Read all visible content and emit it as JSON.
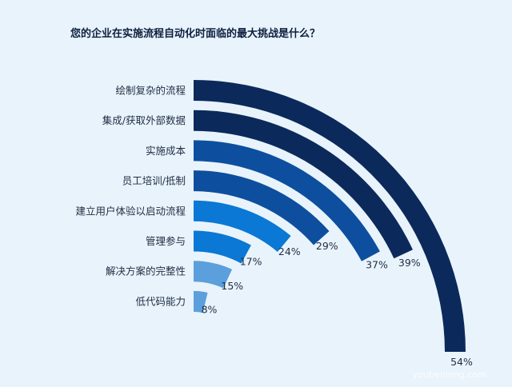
{
  "chart_data": {
    "type": "bar",
    "title": "您的企业在实施流程自动化时面临的最大挑战是什么？",
    "categories": [
      "绘制复杂的流程",
      "集成/获取外部数据",
      "实施成本",
      "员工培训/抵制",
      "建立用户体验以启动流程",
      "管理参与",
      "解决方案的完整性",
      "低代码能力"
    ],
    "values": [
      54,
      39,
      37,
      29,
      24,
      17,
      15,
      8
    ],
    "value_labels": [
      "54%",
      "39%",
      "37%",
      "29%",
      "24%",
      "17%",
      "15%",
      "8%"
    ],
    "colors": [
      "#0b2a5b",
      "#0b2a5b",
      "#0d4f9e",
      "#0d4f9e",
      "#0a78d4",
      "#0a78d4",
      "#5b9fdc",
      "#5b9fdc"
    ],
    "legend": "none",
    "grid": false
  },
  "watermark": "youbeineng.com"
}
